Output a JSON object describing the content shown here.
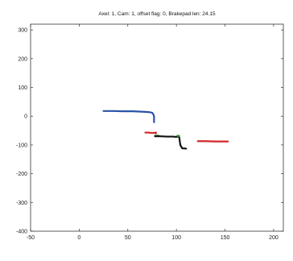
{
  "chart_data": {
    "type": "line",
    "title": "Axel: 1, Cam: 1, offset flag: 0, Brakepad len: 24.15",
    "xlabel": "",
    "ylabel": "",
    "xlim": [
      -50,
      210
    ],
    "ylim": [
      -400,
      320
    ],
    "x_ticks": [
      -50,
      0,
      50,
      100,
      150,
      200
    ],
    "y_ticks": [
      -400,
      -300,
      -200,
      -100,
      0,
      100,
      200,
      300
    ],
    "x_tick_labels": [
      "-50",
      "0",
      "50",
      "100",
      "150",
      "200"
    ],
    "y_tick_labels": [
      "-400",
      "-300",
      "-200",
      "-100",
      "0",
      "100",
      "200",
      "300"
    ],
    "grid": false,
    "legend": false,
    "series": [
      {
        "color": "#2a52a8",
        "x": [
          25,
          35,
          45,
          55,
          62,
          68,
          72,
          75,
          76,
          77,
          77,
          77
        ],
        "y": [
          18,
          18,
          17,
          17,
          16,
          15,
          14,
          12,
          8,
          0,
          -10,
          -21
        ]
      },
      {
        "color": "#d02828",
        "x": [
          68,
          71,
          74,
          77,
          79,
          79
        ],
        "y": [
          -57,
          -57,
          -58,
          -58,
          -57,
          -60
        ]
      },
      {
        "color": "#2e8b3a",
        "x": [
          78,
          82
        ],
        "y": [
          -68,
          -68
        ]
      },
      {
        "color": "#111111",
        "x": [
          78,
          84,
          90,
          96,
          100,
          102,
          103,
          104,
          106,
          108,
          110
        ],
        "y": [
          -70,
          -70,
          -71,
          -71,
          -72,
          -70,
          -75,
          -100,
          -112,
          -112,
          -113
        ]
      },
      {
        "color": "#2e8b3a",
        "x": [
          101,
          103
        ],
        "y": [
          -68,
          -69
        ]
      },
      {
        "color": "#d02828",
        "x": [
          122,
          130,
          140,
          150,
          153
        ],
        "y": [
          -87,
          -87,
          -88,
          -88,
          -88
        ]
      }
    ]
  }
}
